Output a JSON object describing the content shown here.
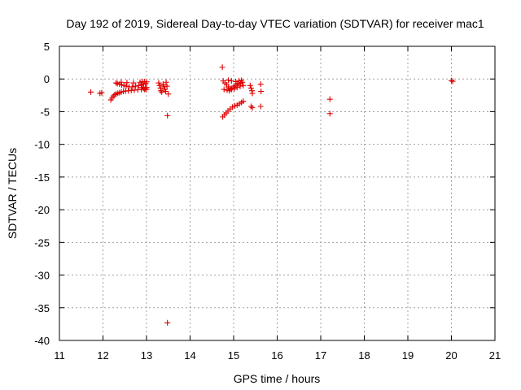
{
  "chart_data": {
    "type": "scatter",
    "title": "Day 192 of 2019, Sidereal Day-to-day VTEC variation (SDTVAR) for receiver mac1",
    "xlabel": "GPS time / hours",
    "ylabel": "SDTVAR / TECUs",
    "xlim": [
      11,
      21
    ],
    "ylim": [
      -40,
      5
    ],
    "xticks": [
      "11",
      "12",
      "13",
      "14",
      "15",
      "16",
      "17",
      "18",
      "19",
      "20",
      "21"
    ],
    "yticks": [
      "5",
      "0",
      "-5",
      "-10",
      "-15",
      "-20",
      "-25",
      "-30",
      "-35",
      "-40"
    ],
    "grid": true,
    "marker": "plus",
    "color": "#e00000",
    "series": [
      {
        "name": "SDTVAR",
        "points": [
          [
            11.72,
            -2.0
          ],
          [
            11.93,
            -2.2
          ],
          [
            11.97,
            -2.1
          ],
          [
            12.18,
            -3.2
          ],
          [
            12.21,
            -2.9
          ],
          [
            12.24,
            -2.6
          ],
          [
            12.27,
            -2.4
          ],
          [
            12.3,
            -2.3
          ],
          [
            12.34,
            -2.2
          ],
          [
            12.38,
            -2.1
          ],
          [
            12.42,
            -2.0
          ],
          [
            12.47,
            -1.9
          ],
          [
            12.52,
            -1.85
          ],
          [
            12.58,
            -1.8
          ],
          [
            12.65,
            -1.75
          ],
          [
            12.72,
            -1.7
          ],
          [
            12.8,
            -1.65
          ],
          [
            12.88,
            -1.6
          ],
          [
            12.95,
            -1.6
          ],
          [
            13.0,
            -1.6
          ],
          [
            12.33,
            -0.7
          ],
          [
            12.38,
            -0.8
          ],
          [
            12.43,
            -0.9
          ],
          [
            12.48,
            -1.0
          ],
          [
            12.53,
            -1.1
          ],
          [
            12.6,
            -1.2
          ],
          [
            12.67,
            -1.2
          ],
          [
            12.75,
            -1.1
          ],
          [
            12.82,
            -1.0
          ],
          [
            12.88,
            -0.9
          ],
          [
            12.93,
            -0.8
          ],
          [
            12.98,
            -0.7
          ],
          [
            12.3,
            -0.6
          ],
          [
            12.42,
            -0.5
          ],
          [
            12.55,
            -0.55
          ],
          [
            12.7,
            -0.6
          ],
          [
            12.85,
            -0.5
          ],
          [
            12.9,
            -0.4
          ],
          [
            12.95,
            -0.4
          ],
          [
            13.0,
            -0.45
          ],
          [
            12.9,
            -1.3
          ],
          [
            12.93,
            -1.4
          ],
          [
            12.97,
            -1.5
          ],
          [
            13.0,
            -1.3
          ],
          [
            13.28,
            -0.6
          ],
          [
            13.3,
            -1.0
          ],
          [
            13.32,
            -1.4
          ],
          [
            13.33,
            -1.8
          ],
          [
            13.35,
            -2.0
          ],
          [
            13.38,
            -0.8
          ],
          [
            13.4,
            -1.2
          ],
          [
            13.42,
            -1.6
          ],
          [
            13.44,
            -1.9
          ],
          [
            13.45,
            -0.5
          ],
          [
            13.47,
            -1.1
          ],
          [
            13.5,
            -2.3
          ],
          [
            13.48,
            -5.6
          ],
          [
            13.48,
            -37.3
          ],
          [
            14.74,
            1.8
          ],
          [
            14.75,
            -5.8
          ],
          [
            14.79,
            -5.5
          ],
          [
            14.83,
            -5.2
          ],
          [
            14.87,
            -4.9
          ],
          [
            14.92,
            -4.6
          ],
          [
            14.97,
            -4.3
          ],
          [
            15.03,
            -4.1
          ],
          [
            15.08,
            -4.0
          ],
          [
            15.13,
            -3.8
          ],
          [
            15.18,
            -3.6
          ],
          [
            15.22,
            -3.4
          ],
          [
            14.76,
            -0.3
          ],
          [
            14.8,
            -0.6
          ],
          [
            14.84,
            -0.9
          ],
          [
            14.88,
            -1.2
          ],
          [
            14.92,
            -1.5
          ],
          [
            14.96,
            -1.4
          ],
          [
            15.0,
            -1.2
          ],
          [
            15.04,
            -1.0
          ],
          [
            15.08,
            -0.8
          ],
          [
            15.12,
            -0.7
          ],
          [
            15.16,
            -0.6
          ],
          [
            15.2,
            -0.5
          ],
          [
            14.78,
            -1.6
          ],
          [
            14.85,
            -1.7
          ],
          [
            14.9,
            -1.8
          ],
          [
            14.95,
            -1.6
          ],
          [
            15.02,
            -1.5
          ],
          [
            15.08,
            -1.3
          ],
          [
            15.15,
            -1.1
          ],
          [
            15.22,
            -1.0
          ],
          [
            14.88,
            -0.2
          ],
          [
            14.95,
            -0.3
          ],
          [
            15.05,
            -0.4
          ],
          [
            15.12,
            -0.3
          ],
          [
            15.18,
            -0.2
          ],
          [
            15.38,
            -1.0
          ],
          [
            15.4,
            -1.4
          ],
          [
            15.42,
            -1.8
          ],
          [
            15.43,
            -2.2
          ],
          [
            15.4,
            -4.2
          ],
          [
            15.43,
            -4.4
          ],
          [
            15.62,
            -0.8
          ],
          [
            15.63,
            -1.9
          ],
          [
            15.62,
            -4.2
          ],
          [
            17.21,
            -3.1
          ],
          [
            17.21,
            -5.3
          ],
          [
            20.0,
            -0.25
          ],
          [
            20.03,
            -0.35
          ]
        ]
      }
    ]
  }
}
